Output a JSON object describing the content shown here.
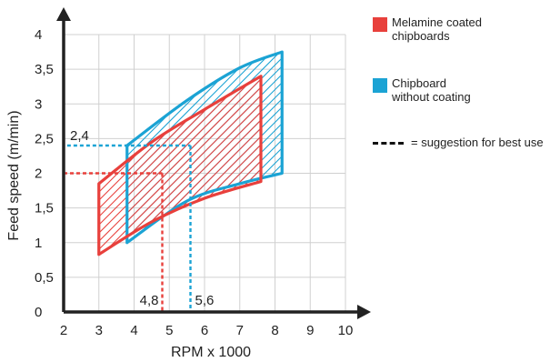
{
  "chart_data": {
    "type": "area",
    "xlabel": "RPM x 1000",
    "ylabel": "Feed  speed (m/min)",
    "xlim": [
      2,
      10
    ],
    "ylim": [
      0,
      4
    ],
    "x_ticks": [
      "2",
      "3",
      "4",
      "5",
      "6",
      "7",
      "8",
      "9",
      "10"
    ],
    "y_ticks": [
      "0",
      "0,5",
      "1",
      "1,5",
      "2",
      "2,5",
      "3",
      "3,5",
      "4"
    ],
    "grid": true,
    "legend_position": "top-right",
    "series": [
      {
        "name": "Melamine coated chipboards",
        "color": "#e8403c",
        "region": {
          "x_min": 3.0,
          "x_max": 7.6,
          "lower": [
            [
              3.0,
              0.83
            ],
            [
              4.5,
              1.3
            ],
            [
              6.0,
              1.64
            ],
            [
              7.6,
              1.88
            ]
          ],
          "upper": [
            [
              3.0,
              1.85
            ],
            [
              4.5,
              2.45
            ],
            [
              6.0,
              2.92
            ],
            [
              7.6,
              3.4
            ]
          ]
        },
        "suggestion": {
          "x": 4.8,
          "y": 2.0,
          "x_label": "4,8",
          "y_label": "2"
        }
      },
      {
        "name": "Chipboard without coating",
        "color": "#1ba3d4",
        "region": {
          "x_min": 3.8,
          "x_max": 8.2,
          "lower": [
            [
              3.8,
              1.0
            ],
            [
              5.5,
              1.6
            ],
            [
              7.0,
              1.85
            ],
            [
              8.2,
              2.0
            ]
          ],
          "upper": [
            [
              3.8,
              2.4
            ],
            [
              5.5,
              3.05
            ],
            [
              7.0,
              3.52
            ],
            [
              8.2,
              3.75
            ]
          ]
        },
        "suggestion": {
          "x": 5.6,
          "y": 2.4,
          "x_label": "5,6",
          "y_label": "2,4"
        }
      }
    ],
    "legend": [
      {
        "label": "Melamine coated\nchipboards",
        "color": "#e8403c"
      },
      {
        "label": "Chipboard\nwithout coating",
        "color": "#1ba3d4"
      },
      {
        "label": "= suggestion for best use",
        "style": "dashed",
        "color": "#111111"
      }
    ]
  }
}
